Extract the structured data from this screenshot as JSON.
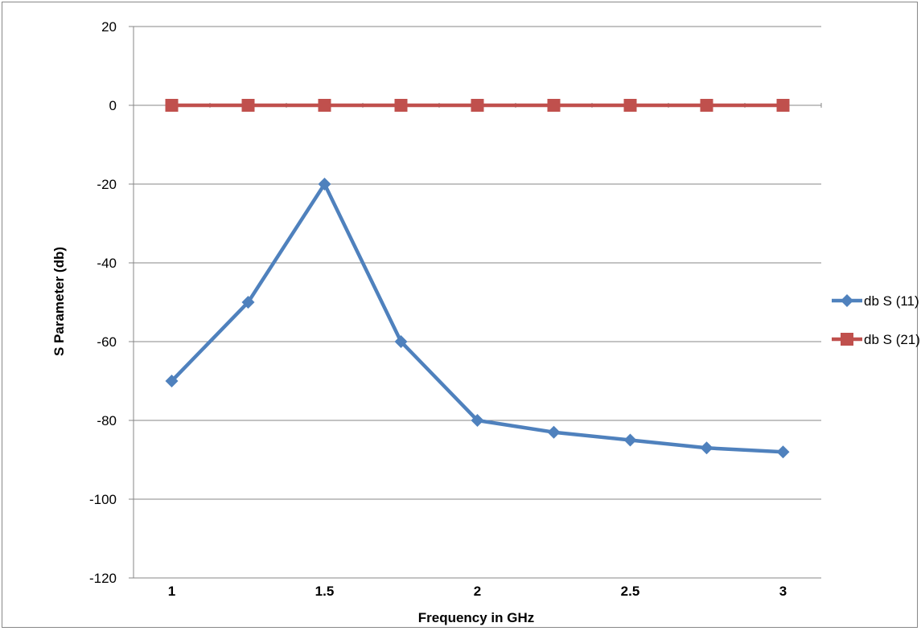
{
  "chart_data": {
    "type": "line",
    "title": "",
    "xlabel": "Frequency in GHz",
    "ylabel": "S Parameter (db)",
    "ylim": [
      -120,
      20
    ],
    "yticks": [
      20,
      0,
      -20,
      -40,
      -60,
      -80,
      -100,
      -120
    ],
    "y_tick_labels": [
      "20",
      "0",
      "-20",
      "-40",
      "-60",
      "-80",
      "-100",
      "-120"
    ],
    "x_tick_labels": [
      "1",
      "1.5",
      "2",
      "2.5",
      "3"
    ],
    "x_tick_positions": [
      1,
      1.5,
      2,
      2.5,
      3
    ],
    "xlim": [
      0.875,
      3.125
    ],
    "grid": true,
    "legend_position": "right",
    "series": [
      {
        "name": "db S (11)",
        "color": "#4F81BD",
        "marker": "diamond",
        "x": [
          1,
          1.25,
          1.5,
          1.75,
          2,
          2.25,
          2.5,
          2.75,
          3
        ],
        "values": [
          -70,
          -50,
          -20,
          -60,
          -80,
          -83,
          -85,
          -87,
          -88
        ]
      },
      {
        "name": "db S (21)",
        "color": "#C0504D",
        "marker": "square",
        "x": [
          1,
          1.25,
          1.5,
          1.75,
          2,
          2.25,
          2.5,
          2.75,
          3
        ],
        "values": [
          0,
          0,
          0,
          0,
          0,
          0,
          0,
          0,
          0
        ]
      }
    ]
  }
}
